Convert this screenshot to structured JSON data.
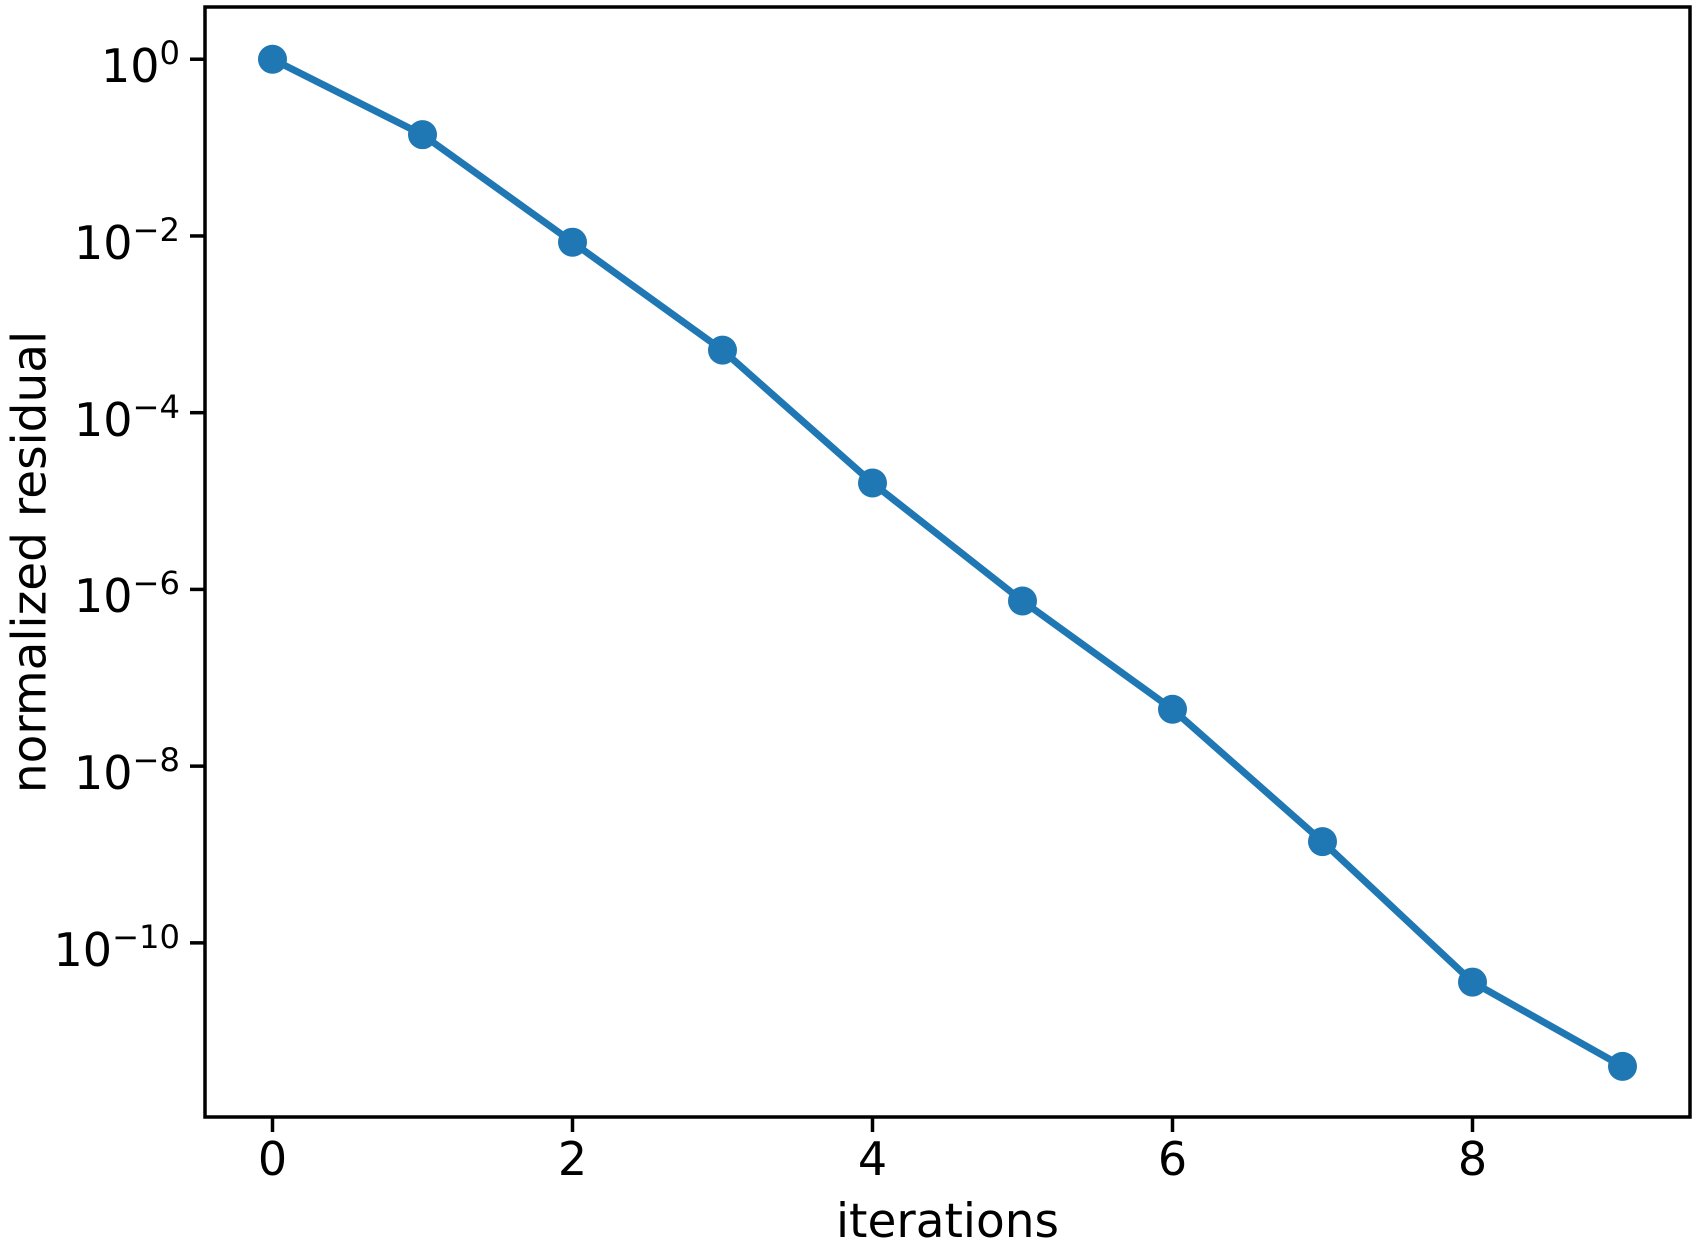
{
  "figure": {
    "background": "#ffffff",
    "axis_color": "#000000",
    "text_color": "#000000"
  },
  "chart_data": {
    "type": "line",
    "title": "",
    "xlabel": "iterations",
    "ylabel": "normalized residual",
    "yscale": "log",
    "xscale": "linear",
    "grid": false,
    "legend": null,
    "series": [
      {
        "name": "normalized residual",
        "color": "#1f77b4",
        "marker": "circle",
        "x": [
          0,
          1,
          2,
          3,
          4,
          5,
          6,
          7,
          8,
          9
        ],
        "y": [
          1.0,
          0.14,
          0.0085,
          0.00051,
          1.6e-05,
          7.4e-07,
          4.4e-08,
          1.4e-09,
          3.6e-11,
          4e-12
        ]
      }
    ],
    "xticks": [
      0,
      2,
      4,
      6,
      8
    ],
    "ytick_base": "10",
    "ytick_exponents": [
      0,
      -2,
      -4,
      -6,
      -8,
      -10
    ],
    "xlim": [
      -0.45,
      9.45
    ],
    "ylim": [
      1.07e-12,
      3.9
    ]
  }
}
